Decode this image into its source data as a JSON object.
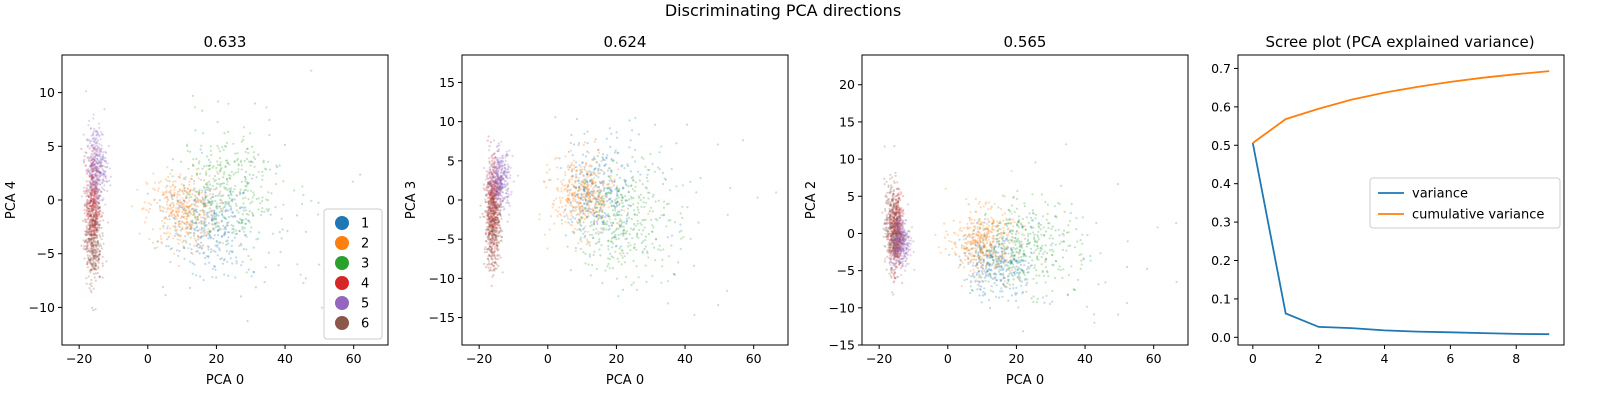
{
  "figure": {
    "suptitle": "Discriminating PCA directions"
  },
  "colors": {
    "1": "#1f77b4",
    "2": "#ff7f0e",
    "3": "#2ca02c",
    "4": "#d62728",
    "5": "#9467bd",
    "6": "#8c564b"
  },
  "chart_data": [
    {
      "type": "scatter",
      "title": "0.633",
      "xlabel": "PCA 0",
      "ylabel": "PCA 4",
      "xlim": [
        -25,
        70
      ],
      "ylim": [
        -13.5,
        13.5
      ],
      "xticks": [
        -20,
        0,
        20,
        40,
        60
      ],
      "yticks": [
        -10,
        -5,
        0,
        5,
        10
      ],
      "legend_position": "lower right",
      "series": [
        {
          "name": "1",
          "center": [
            18,
            -2.5
          ],
          "spread": [
            6,
            2.2
          ]
        },
        {
          "name": "2",
          "center": [
            10,
            -1
          ],
          "spread": [
            5,
            1.8
          ]
        },
        {
          "name": "3",
          "center": [
            22,
            1
          ],
          "spread": [
            7,
            2.6
          ]
        },
        {
          "name": "4",
          "center": [
            -16,
            -0.5
          ],
          "spread": [
            1,
            2.5
          ]
        },
        {
          "name": "5",
          "center": [
            -15,
            3
          ],
          "spread": [
            1.5,
            2
          ]
        },
        {
          "name": "6",
          "center": [
            -16,
            -3.5
          ],
          "spread": [
            1.2,
            2.2
          ]
        }
      ],
      "legend": {
        "entries": [
          "1",
          "2",
          "3",
          "4",
          "5",
          "6"
        ]
      }
    },
    {
      "type": "scatter",
      "title": "0.624",
      "xlabel": "PCA 0",
      "ylabel": "PCA 3",
      "xlim": [
        -25,
        70
      ],
      "ylim": [
        -18.5,
        18.5
      ],
      "xticks": [
        -20,
        0,
        20,
        40,
        60
      ],
      "yticks": [
        -15,
        -10,
        -5,
        0,
        5,
        10,
        15
      ],
      "series": [
        {
          "name": "1",
          "center": [
            14,
            1
          ],
          "spread": [
            5,
            3
          ]
        },
        {
          "name": "2",
          "center": [
            10,
            0.5
          ],
          "spread": [
            4.5,
            2.5
          ]
        },
        {
          "name": "3",
          "center": [
            22,
            -3
          ],
          "spread": [
            7,
            3.5
          ]
        },
        {
          "name": "4",
          "center": [
            -16,
            -1
          ],
          "spread": [
            1,
            3
          ]
        },
        {
          "name": "5",
          "center": [
            -14,
            2.5
          ],
          "spread": [
            1.5,
            1.8
          ]
        },
        {
          "name": "6",
          "center": [
            -16,
            -3
          ],
          "spread": [
            1.2,
            3
          ]
        }
      ]
    },
    {
      "type": "scatter",
      "title": "0.565",
      "xlabel": "PCA 0",
      "ylabel": "PCA 2",
      "xlim": [
        -25,
        70
      ],
      "ylim": [
        -15,
        24
      ],
      "xticks": [
        -20,
        0,
        20,
        40,
        60
      ],
      "yticks": [
        -15,
        -10,
        -5,
        0,
        5,
        10,
        15,
        20
      ],
      "series": [
        {
          "name": "1",
          "center": [
            14,
            -4
          ],
          "spread": [
            5,
            2.2
          ]
        },
        {
          "name": "2",
          "center": [
            10,
            -1
          ],
          "spread": [
            4.5,
            2.2
          ]
        },
        {
          "name": "3",
          "center": [
            22,
            -2
          ],
          "spread": [
            7,
            3
          ]
        },
        {
          "name": "4",
          "center": [
            -15,
            0
          ],
          "spread": [
            1,
            2.5
          ]
        },
        {
          "name": "5",
          "center": [
            -14,
            -1
          ],
          "spread": [
            1.5,
            1.8
          ]
        },
        {
          "name": "6",
          "center": [
            -16,
            1
          ],
          "spread": [
            1.2,
            3
          ]
        }
      ]
    },
    {
      "type": "line",
      "title": "Scree plot (PCA explained variance)",
      "xlim": [
        -0.45,
        9.45
      ],
      "ylim": [
        -0.02,
        0.735
      ],
      "xticks": [
        0,
        2,
        4,
        6,
        8
      ],
      "yticks": [
        0.0,
        0.1,
        0.2,
        0.3,
        0.4,
        0.5,
        0.6,
        0.7
      ],
      "x": [
        0,
        1,
        2,
        3,
        4,
        5,
        6,
        7,
        8,
        9
      ],
      "legend_position": "center right",
      "series": [
        {
          "name": "variance",
          "color": "#1f77b4",
          "values": [
            0.506,
            0.062,
            0.027,
            0.024,
            0.018,
            0.015,
            0.013,
            0.011,
            0.009,
            0.008
          ]
        },
        {
          "name": "cumulative variance",
          "color": "#ff7f0e",
          "values": [
            0.506,
            0.568,
            0.595,
            0.619,
            0.637,
            0.652,
            0.665,
            0.676,
            0.685,
            0.693
          ]
        }
      ]
    }
  ]
}
